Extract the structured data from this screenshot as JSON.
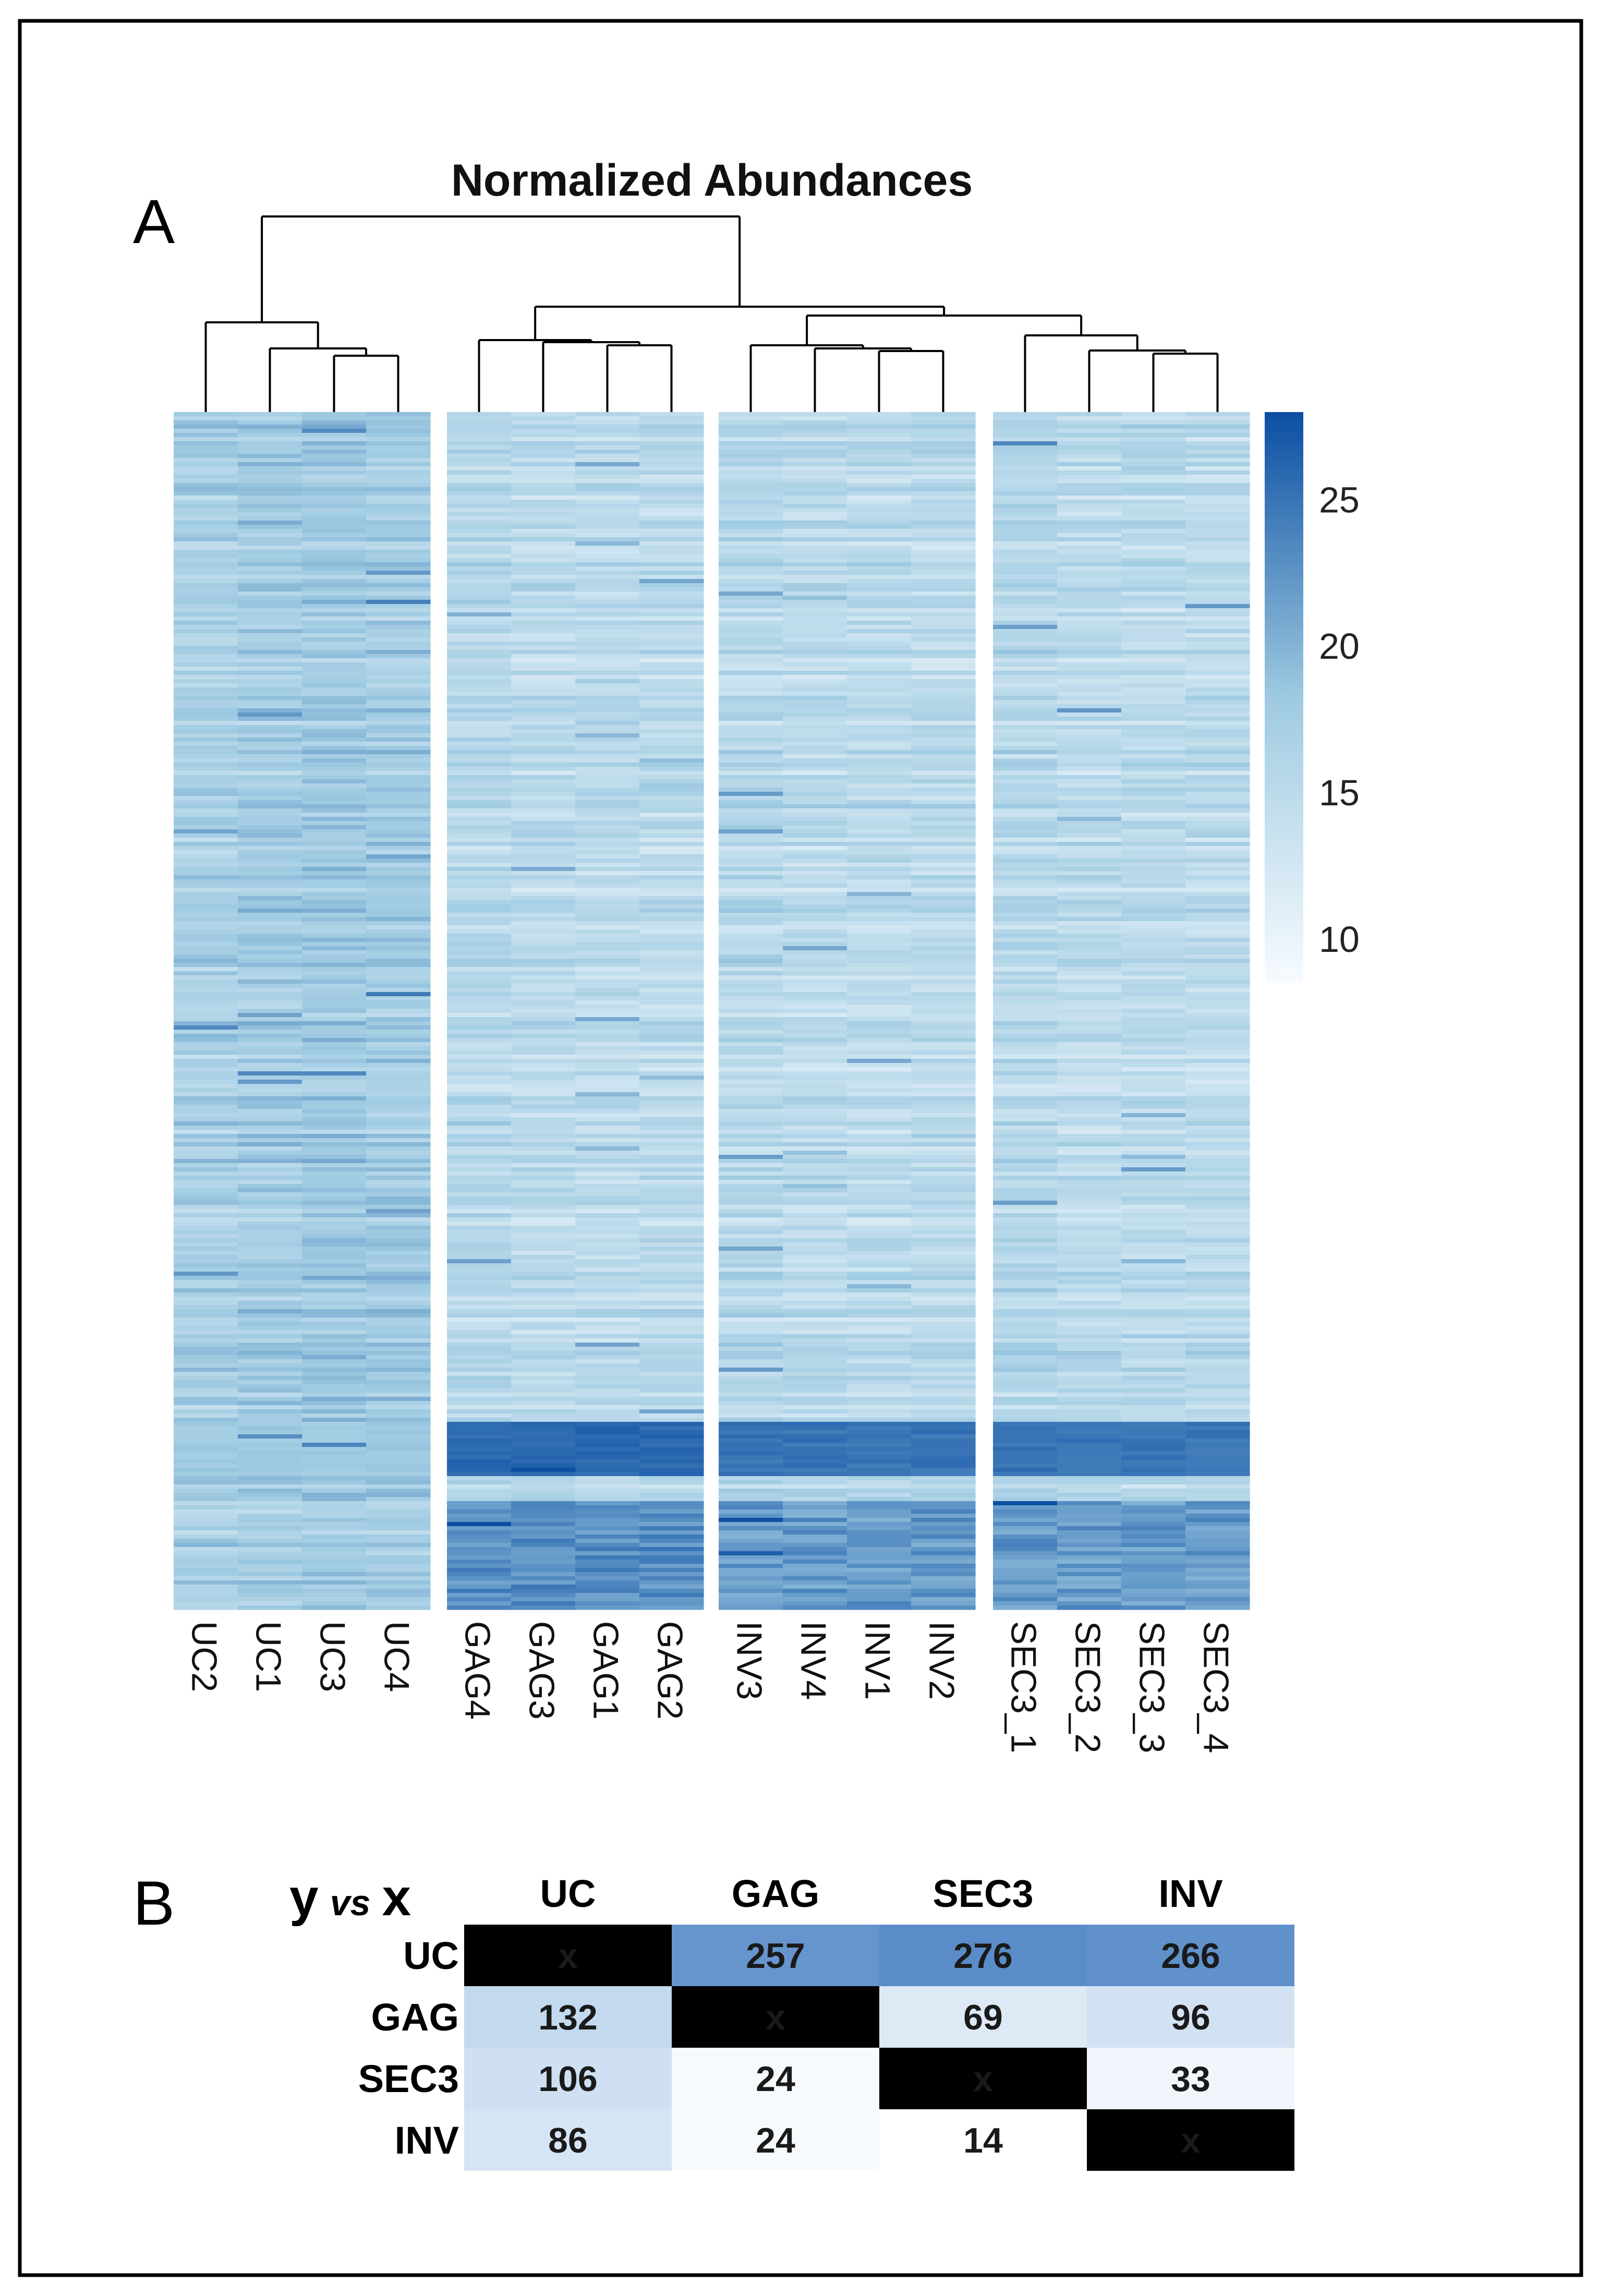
{
  "panel_a": {
    "label": "A",
    "chart_data": {
      "type": "heatmap",
      "title": "Normalized Abundances",
      "colorbar": {
        "ticks": [
          10,
          15,
          20,
          25
        ],
        "min": 8.5,
        "max": 28
      },
      "groups": [
        {
          "name": "UC",
          "samples": [
            "UC2",
            "UC1",
            "UC3",
            "UC4"
          ]
        },
        {
          "name": "GAG",
          "samples": [
            "GAG4",
            "GAG3",
            "GAG1",
            "GAG2"
          ]
        },
        {
          "name": "INV",
          "samples": [
            "INV3",
            "INV4",
            "INV1",
            "INV2"
          ]
        },
        {
          "name": "SEC3",
          "samples": [
            "SEC3_1",
            "SEC3_2",
            "SEC3_3",
            "SEC3_4"
          ]
        }
      ],
      "samples": [
        "UC2",
        "UC1",
        "UC3",
        "UC4",
        "GAG4",
        "GAG3",
        "GAG1",
        "GAG2",
        "INV3",
        "INV4",
        "INV1",
        "INV2",
        "SEC3_1",
        "SEC3_2",
        "SEC3_3",
        "SEC3_4"
      ],
      "approx_mean_value_by_sample": [
        17.0,
        17.5,
        18.0,
        17.5,
        15.5,
        15.0,
        15.0,
        15.0,
        15.5,
        15.0,
        15.0,
        15.0,
        15.5,
        15.0,
        15.0,
        15.0
      ],
      "high_abundance_block_value_by_group": {
        "UC": 18,
        "GAG": 26,
        "INV": 25,
        "SEC3": 25
      },
      "colors": {
        "low": "#f7fbff",
        "mid": "#9ecae1",
        "high": "#0b4ea2"
      }
    }
  },
  "panel_b": {
    "label": "B",
    "corner_label": {
      "y": "y",
      "vs": "vs",
      "x": "x"
    },
    "chart_data": {
      "type": "table",
      "columns": [
        "UC",
        "GAG",
        "SEC3",
        "INV"
      ],
      "rows": [
        {
          "label": "UC",
          "values": [
            "x",
            "257",
            "276",
            "266"
          ]
        },
        {
          "label": "GAG",
          "values": [
            "132",
            "x",
            "69",
            "96"
          ]
        },
        {
          "label": "SEC3",
          "values": [
            "106",
            "24",
            "x",
            "33"
          ]
        },
        {
          "label": "INV",
          "values": [
            "86",
            "24",
            "14",
            "x"
          ]
        }
      ],
      "diagonal_color": "#000000",
      "colors": [
        "#f7fbff",
        "#0b4ea2"
      ],
      "value_range": [
        14,
        276
      ]
    }
  }
}
